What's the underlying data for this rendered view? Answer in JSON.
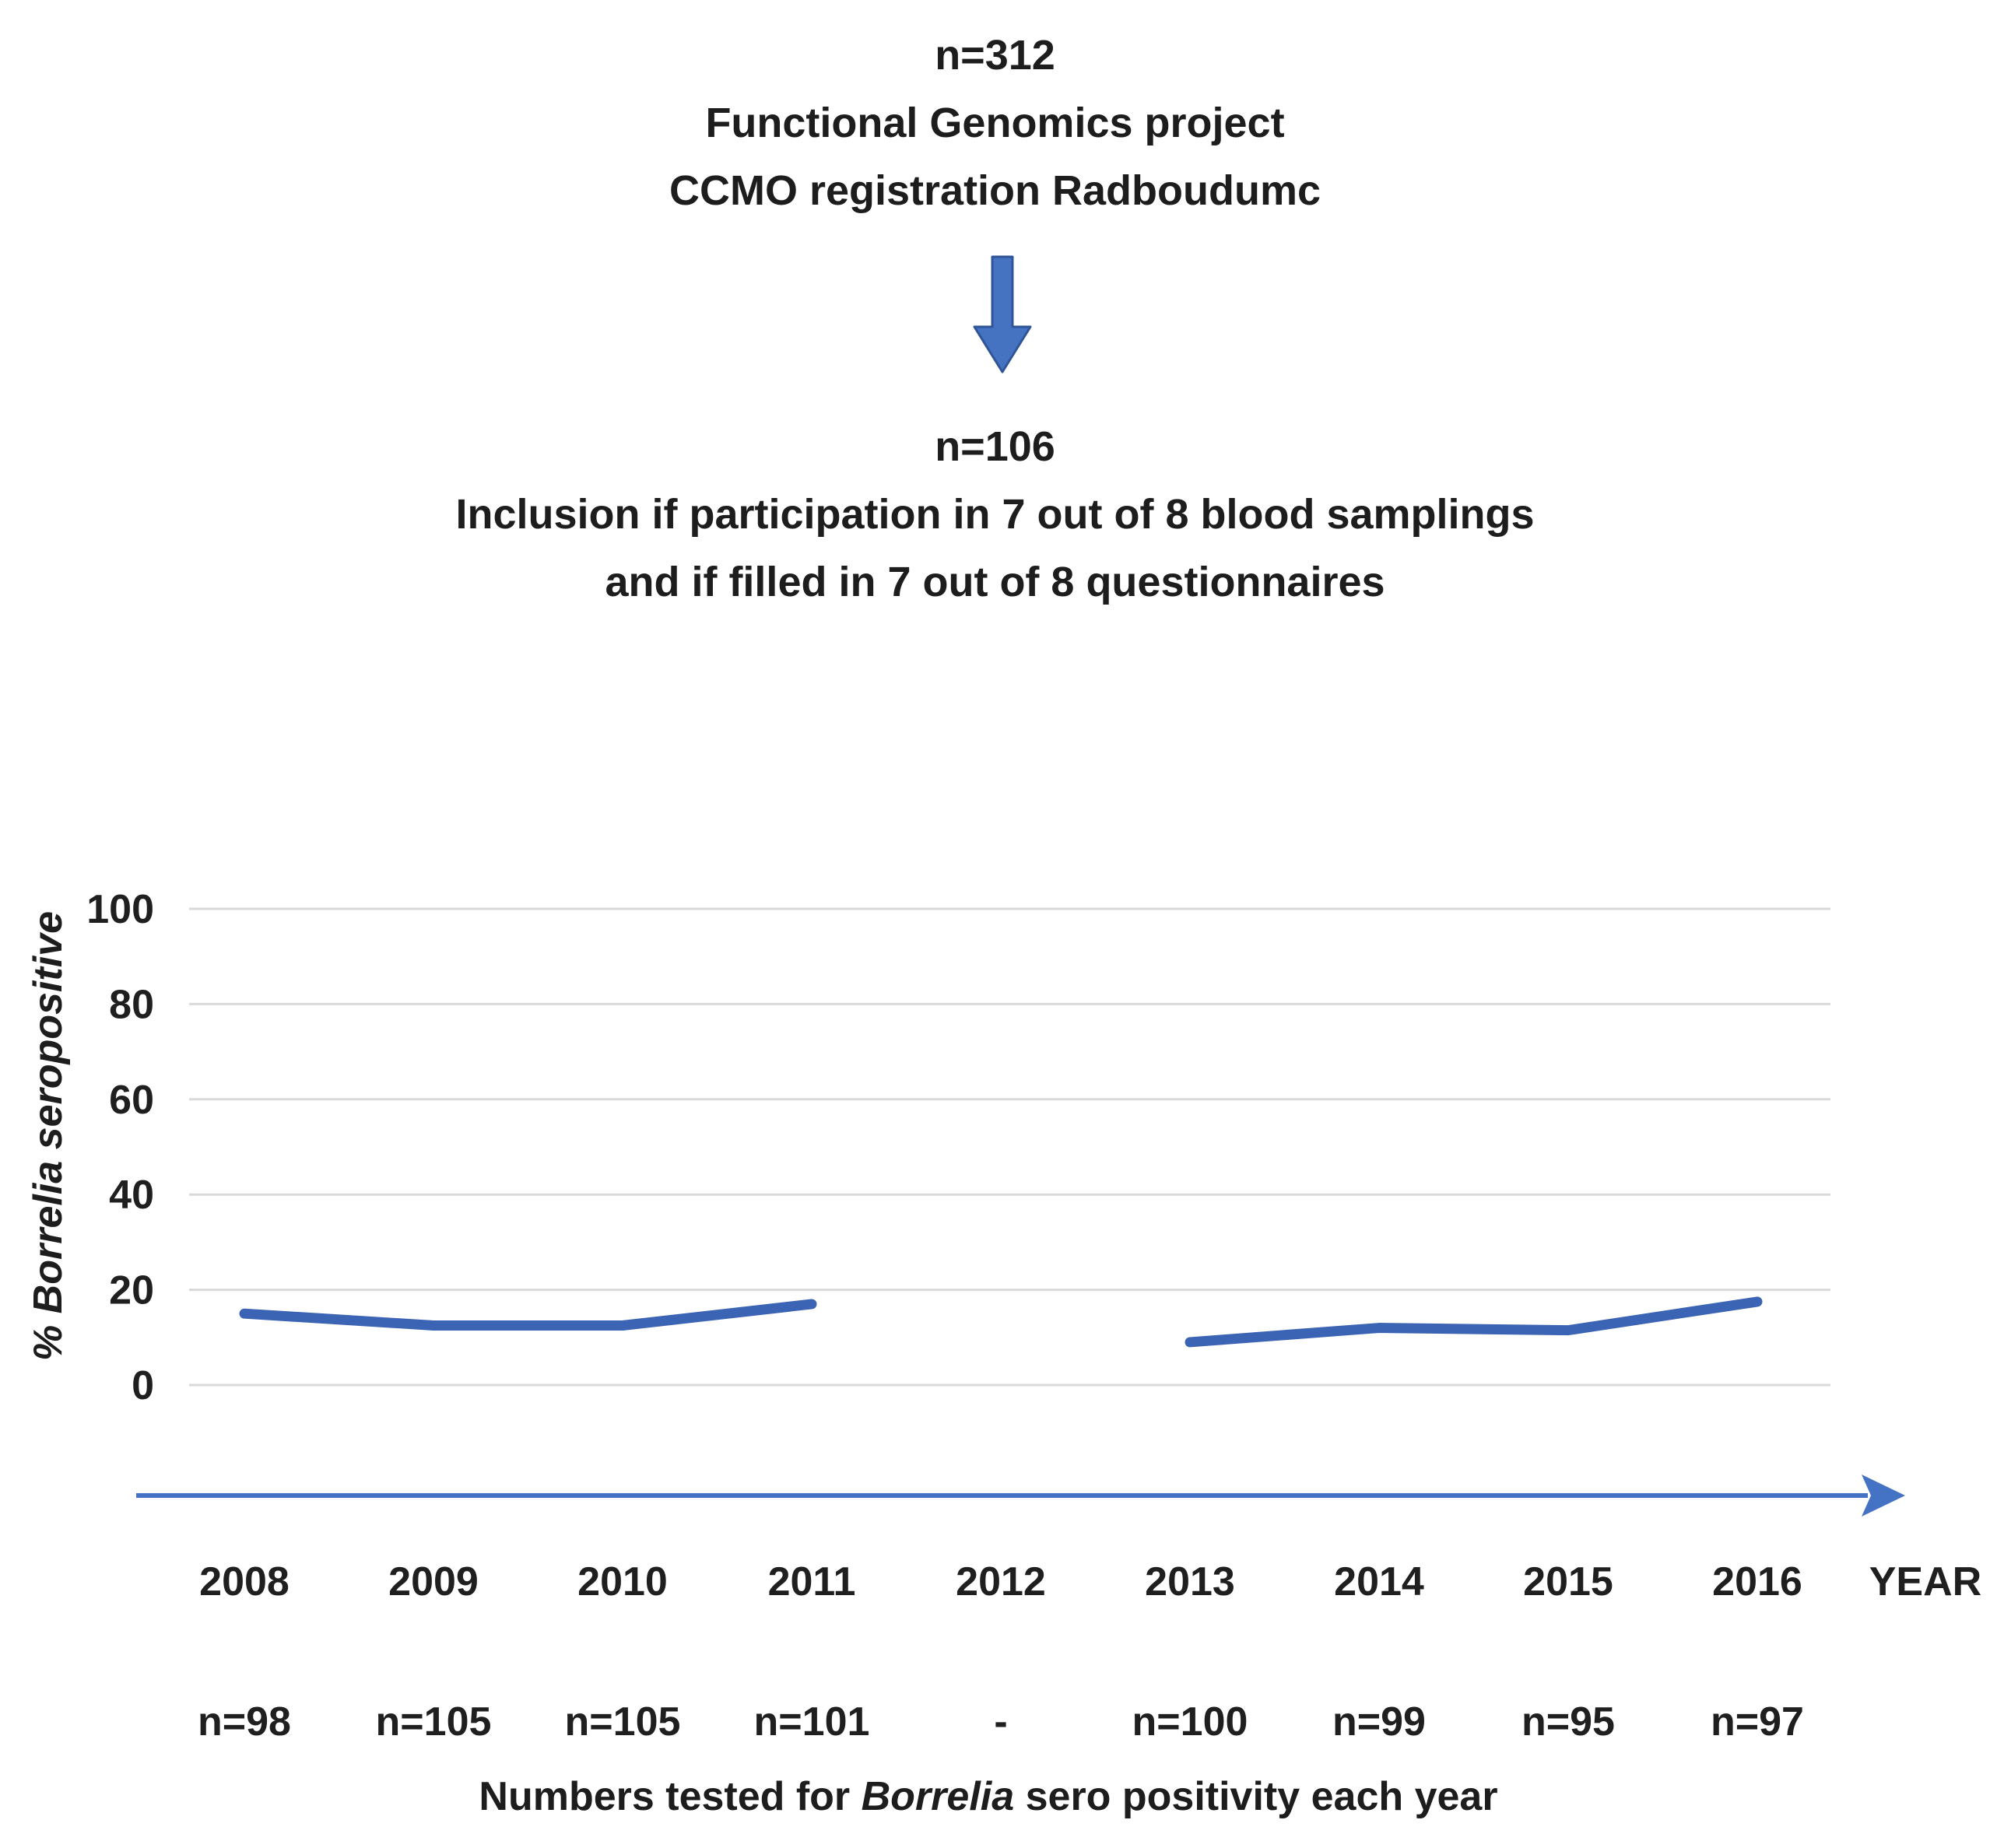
{
  "flowchart": {
    "node1": {
      "line1": "n=312",
      "line2": "Functional Genomics project",
      "line3": "CCMO registration Radboudumc"
    },
    "node2": {
      "line1": "n=106",
      "line2": "Inclusion if participation in 7 out of 8 blood samplings",
      "line3": "and if filled in 7 out of 8 questionnaires"
    },
    "icons": {
      "flow_arrow": "down-block-arrow"
    }
  },
  "chart": {
    "y_axis_label_prefix": "% ",
    "y_axis_label_italic": "Borrelia",
    "y_axis_label_suffix": " seropositive",
    "x_axis_label": "YEAR",
    "caption_prefix": "Numbers tested for ",
    "caption_italic": "Borrelia",
    "caption_suffix": " sero positivity each year",
    "icons": {
      "x_axis_arrow": "right-arrow"
    },
    "colors": {
      "line": "#3C64B4",
      "arrow": "#4472C4",
      "arrow_fill": "#4673C1",
      "arrow_edge": "#2F5597",
      "gridline": "#d9d9d9",
      "text": "#1f1f1f"
    }
  },
  "chart_data": {
    "type": "line",
    "title": "",
    "xlabel": "YEAR",
    "ylabel": "% Borrelia seropositive",
    "categories": [
      "2008",
      "2009",
      "2010",
      "2011",
      "2012",
      "2013",
      "2014",
      "2015",
      "2016"
    ],
    "series": [
      {
        "name": "% Borrelia seropositive",
        "values": [
          15,
          12.5,
          12.5,
          17,
          null,
          9,
          12,
          11.5,
          17.5
        ]
      }
    ],
    "sample_sizes": [
      "n=98",
      "n=105",
      "n=105",
      "n=101",
      "-",
      "n=100",
      "n=99",
      "n=95",
      "n=97"
    ],
    "ylim": [
      0,
      100
    ],
    "yticks": [
      0,
      20,
      40,
      60,
      80,
      100
    ],
    "grid": true,
    "legend": false,
    "notes": "gap in line at 2012 (no data)"
  }
}
